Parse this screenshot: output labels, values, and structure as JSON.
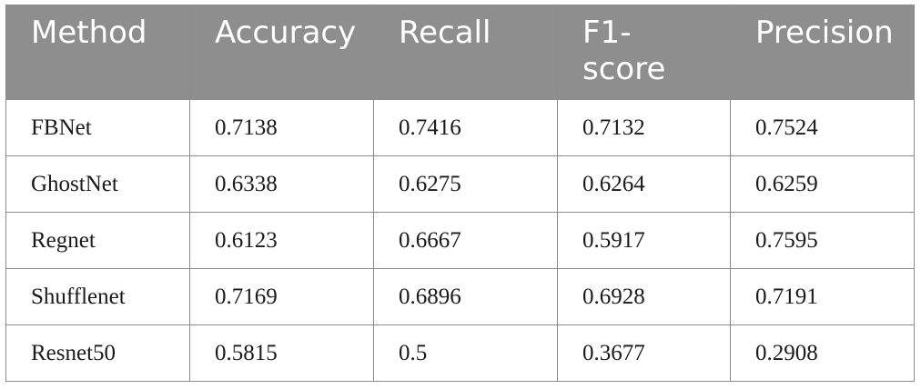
{
  "table": {
    "headers": [
      "Method",
      "Accuracy",
      "Recall",
      "F1-\nscore",
      "Precision"
    ],
    "rows": [
      [
        "FBNet",
        "0.7138",
        "0.7416",
        "0.7132",
        "0.7524"
      ],
      [
        "GhostNet",
        "0.6338",
        "0.6275",
        "0.6264",
        "0.6259"
      ],
      [
        "Regnet",
        "0.6123",
        "0.6667",
        "0.5917",
        "0.7595"
      ],
      [
        "Shufflenet",
        "0.7169",
        "0.6896",
        "0.6928",
        "0.7191"
      ],
      [
        "Resnet50",
        "0.5815",
        "0.5",
        "0.3677",
        "0.2908"
      ]
    ]
  },
  "colors": {
    "header_bg": "#8e8e8e",
    "header_text": "#ffffff",
    "border": "#8c8c8c"
  }
}
